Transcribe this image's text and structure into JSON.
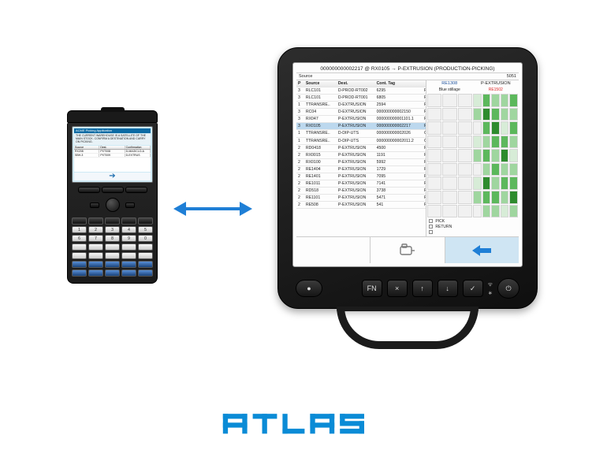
{
  "colors": {
    "accent": "#0a8bd6",
    "arrow": "#1f7fd6",
    "terminal_back": "#1f7fd6",
    "sel_row": "#bcd8ee",
    "rack_label_left": "#1b4f9b",
    "rack_label_right": "#d22",
    "green1": "#d7ecd7",
    "green2": "#9fd69f",
    "green3": "#5cb85c",
    "green4": "#2e8b2e",
    "grey_cell": "#f1f1f1"
  },
  "handheld": {
    "titlebar": "ACME Picking Application",
    "message": "THE CURRENT WAREHOUSE IS A SATELLITE OF THE MAIN STOCK. CONFIRM A DESTINATION AND CARRY ON PICKING.",
    "columns": [
      "Source",
      "Dest.",
      "Confirmation"
    ],
    "rows": [
      [
        "RX208",
        "PXT008",
        "D-MAGICLO-A"
      ],
      [
        "SBH-3",
        "PXT009",
        "D-EXTRUS"
      ]
    ]
  },
  "terminal": {
    "header": "000000000002217 @ RX0105 → P-EXTRUSION (PRODUCTION-PICKING)",
    "sub_left": "Source",
    "sub_right": "5051",
    "columns": [
      "P",
      "Source",
      "Dest.",
      "Cont. Tag",
      ""
    ],
    "rows": [
      {
        "p": "3",
        "s": "RLC101",
        "d": "D-PROD-RT002",
        "c": "6295",
        "t": "PRODUCT"
      },
      {
        "p": "3",
        "s": "RLC101",
        "d": "D-PROD-RT001",
        "c": "6805",
        "t": "PRODUCT"
      },
      {
        "p": "1",
        "s": "TTRANSRE..",
        "d": "D-EXTRUSION",
        "c": "2594",
        "t": "RETURN_F"
      },
      {
        "p": "3",
        "s": "RC04",
        "d": "D-EXTRUSION",
        "c": "000000000002150",
        "t": "PRODUCT"
      },
      {
        "p": "3",
        "s": "RX047",
        "d": "P-EXTRUSION",
        "c": "000000000001101.1",
        "t": "PRODUCT"
      },
      {
        "p": "3",
        "s": "RX0105",
        "d": "P-EXTRUSION",
        "c": "000000000002217",
        "t": "PRODUCT",
        "sel": true
      },
      {
        "p": "1",
        "s": "TTRANSRE..",
        "d": "D-DIP-UTS",
        "c": "000000000002026",
        "t": "CUSTOM"
      },
      {
        "p": "1",
        "s": "TTRANSRE..",
        "d": "D-DIP-UTS",
        "c": "000000000002011.2",
        "t": "CUSTOM"
      },
      {
        "p": "2",
        "s": "RD0418",
        "d": "P-EXTRUSION",
        "c": "4500",
        "t": "PRODUCT"
      },
      {
        "p": "2",
        "s": "RX0015",
        "d": "P-EXTRUSION",
        "c": "1191",
        "t": "PRODUCT"
      },
      {
        "p": "2",
        "s": "RX0100",
        "d": "P-EXTRUSION",
        "c": "5992",
        "t": "REPLENISH"
      },
      {
        "p": "2",
        "s": "RE1404",
        "d": "P-EXTRUSION",
        "c": "1729",
        "t": "PICKING"
      },
      {
        "p": "2",
        "s": "RE1401",
        "d": "P-EXTRUSION",
        "c": "7095",
        "t": "PICKING"
      },
      {
        "p": "2",
        "s": "RE1011",
        "d": "P-EXTRUSION",
        "c": "7141",
        "t": "PICKING"
      },
      {
        "p": "2",
        "s": "RD518",
        "d": "P-EXTRUSION",
        "c": "3738",
        "t": "PICKING"
      },
      {
        "p": "2",
        "s": "RE1101",
        "d": "P-EXTRUSION",
        "c": "5471",
        "t": "PICKING"
      },
      {
        "p": "2",
        "s": "RE508",
        "d": "P-EXTRUSION",
        "c": "541",
        "t": "PICKING"
      }
    ],
    "side": {
      "left_code": "RE1308",
      "right_title": "P-EXTRUSION",
      "left_sub": "Blue stillage",
      "right_code": "RE1502",
      "rack_left": [
        [
          "g0",
          "g0",
          "g0"
        ],
        [
          "g0",
          "g0",
          "g0"
        ],
        [
          "g0",
          "g0",
          "g0"
        ],
        [
          "g0",
          "g0",
          "g0"
        ],
        [
          "g0",
          "g0",
          "g0"
        ],
        [
          "g0",
          "g0",
          "g0"
        ],
        [
          "g0",
          "g0",
          "g0"
        ],
        [
          "g0",
          "g0",
          "g0"
        ],
        [
          "g0",
          "g0",
          "g0"
        ]
      ],
      "rack_right": [
        [
          "g1",
          "g3",
          "g2",
          "g2",
          "g3"
        ],
        [
          "g2",
          "g4",
          "g3",
          "g2",
          "g2"
        ],
        [
          "g0",
          "g3",
          "g4",
          "g1",
          "g3"
        ],
        [
          "g1",
          "g2",
          "g3",
          "g3",
          "g2"
        ],
        [
          "g2",
          "g3",
          "g2",
          "g4",
          "g1"
        ],
        [
          "g0",
          "g2",
          "g3",
          "g2",
          "g2"
        ],
        [
          "g1",
          "g4",
          "g2",
          "g3",
          "g3"
        ],
        [
          "g2",
          "g3",
          "g3",
          "g2",
          "g4"
        ],
        [
          "g0",
          "g2",
          "g2",
          "g1",
          "g2"
        ]
      ],
      "legend": [
        {
          "label": "PICK",
          "color": "#ffffff"
        },
        {
          "label": "RETURN",
          "color": "#ffffff"
        },
        {
          "label": "",
          "color": "#ffffff"
        }
      ]
    },
    "footer": {
      "scanner_icon": "scanner",
      "back_icon": "back"
    },
    "hw_buttons": [
      "FN",
      "×",
      "↑",
      "↓",
      "✓"
    ],
    "indicators": [
      "wifi",
      "bt"
    ],
    "power": "⏻"
  },
  "logo_text": "atlas"
}
